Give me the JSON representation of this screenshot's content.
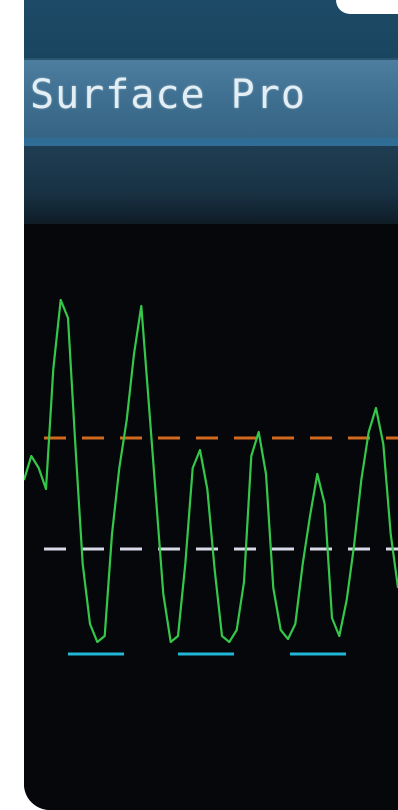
{
  "window": {
    "title": "Surface Pro"
  },
  "colors": {
    "title_bar": "#3f7091",
    "title_text": "#e3eef5",
    "bezel": "#1d4a66",
    "plot_background": "#05070a",
    "trace": "#35c74a",
    "upper_reference": "#d2691e",
    "mid_reference": "#d8d8e8",
    "baseline_marker": "#22b6d8"
  },
  "chart_data": {
    "type": "line",
    "series": [
      {
        "y": [
          58,
          66,
          62,
          55,
          95,
          118,
          112,
          70,
          30,
          10,
          4,
          6,
          40,
          62,
          78,
          100,
          116,
          84,
          52,
          20,
          4,
          6,
          30,
          62,
          68,
          55,
          28,
          6,
          4,
          8,
          24,
          66,
          74,
          60,
          22,
          8,
          5,
          10,
          30,
          46,
          60,
          50,
          12,
          6,
          18,
          36,
          58,
          74,
          82,
          70,
          40,
          22
        ]
      }
    ],
    "reference_lines": [
      {
        "level": 72,
        "style": "dashed"
      },
      {
        "level": 35,
        "style": "dashed"
      }
    ],
    "baseline_markers": [
      {
        "level": 2,
        "segments": 3
      }
    ]
  }
}
